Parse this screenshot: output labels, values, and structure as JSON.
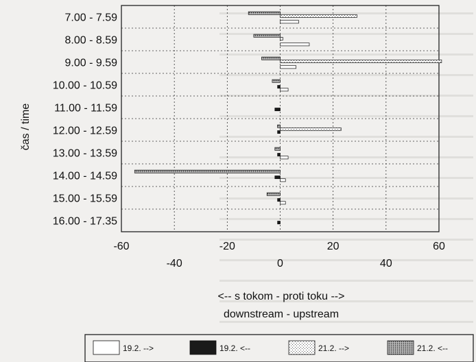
{
  "chart_data": {
    "type": "bar",
    "orientation": "horizontal",
    "ylabel": "čas / time",
    "xlabel_line1": "<-- s tokom - proti toku -->",
    "xlabel_line2": "downstream - upstream",
    "xlim": [
      -60,
      60
    ],
    "xticks_upper": [
      "-60",
      "-20",
      "20",
      "60"
    ],
    "xticks_lower": [
      "-40",
      "0",
      "40"
    ],
    "grid": true,
    "legend_position": "bottom",
    "categories": [
      "7.00 - 7.59",
      "8.00 - 8.59",
      "9.00 - 9.59",
      "10.00 - 10.59",
      "11.00 - 11.59",
      "12.00 - 12.59",
      "13.00 - 13.59",
      "14.00 - 14.59",
      "15.00 - 15.59",
      "16.00 - 17.35"
    ],
    "series": [
      {
        "name": "19.2. -->",
        "fill": "white",
        "values": [
          7,
          11,
          6,
          3,
          0,
          0,
          3,
          2,
          2,
          0
        ]
      },
      {
        "name": "19.2. <--",
        "fill": "black",
        "values": [
          0,
          0,
          0,
          -1,
          -2,
          -1,
          -1,
          -2,
          -1,
          -1
        ]
      },
      {
        "name": "21.2. -->",
        "fill": "light-dots",
        "values": [
          29,
          1,
          61,
          0,
          0,
          23,
          0,
          0,
          0,
          0
        ]
      },
      {
        "name": "21.2. <--",
        "fill": "dense-dots",
        "values": [
          -12,
          -10,
          -7,
          -3,
          0,
          -1,
          -2,
          -55,
          -5,
          0
        ]
      }
    ]
  }
}
